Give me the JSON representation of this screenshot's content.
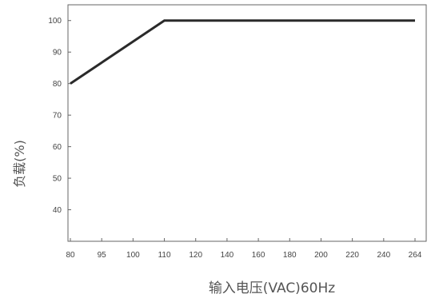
{
  "chart_data": {
    "type": "line",
    "title": "",
    "xlabel": "输入电压(VAC)60Hz",
    "ylabel": "负载(%)",
    "x_ticks": [
      "80",
      "95",
      "100",
      "110",
      "120",
      "140",
      "160",
      "180",
      "200",
      "220",
      "240",
      "264"
    ],
    "y_ticks": [
      "40",
      "50",
      "60",
      "70",
      "80",
      "90",
      "100"
    ],
    "ylim": [
      30,
      105
    ],
    "grid": false,
    "legend": "none",
    "series": [
      {
        "x": [
          "80",
          "110",
          "264"
        ],
        "values": [
          80,
          100,
          100
        ]
      }
    ],
    "colors": {
      "line": "#2a2a2a",
      "frame": "#666666",
      "text": "#444444"
    }
  }
}
